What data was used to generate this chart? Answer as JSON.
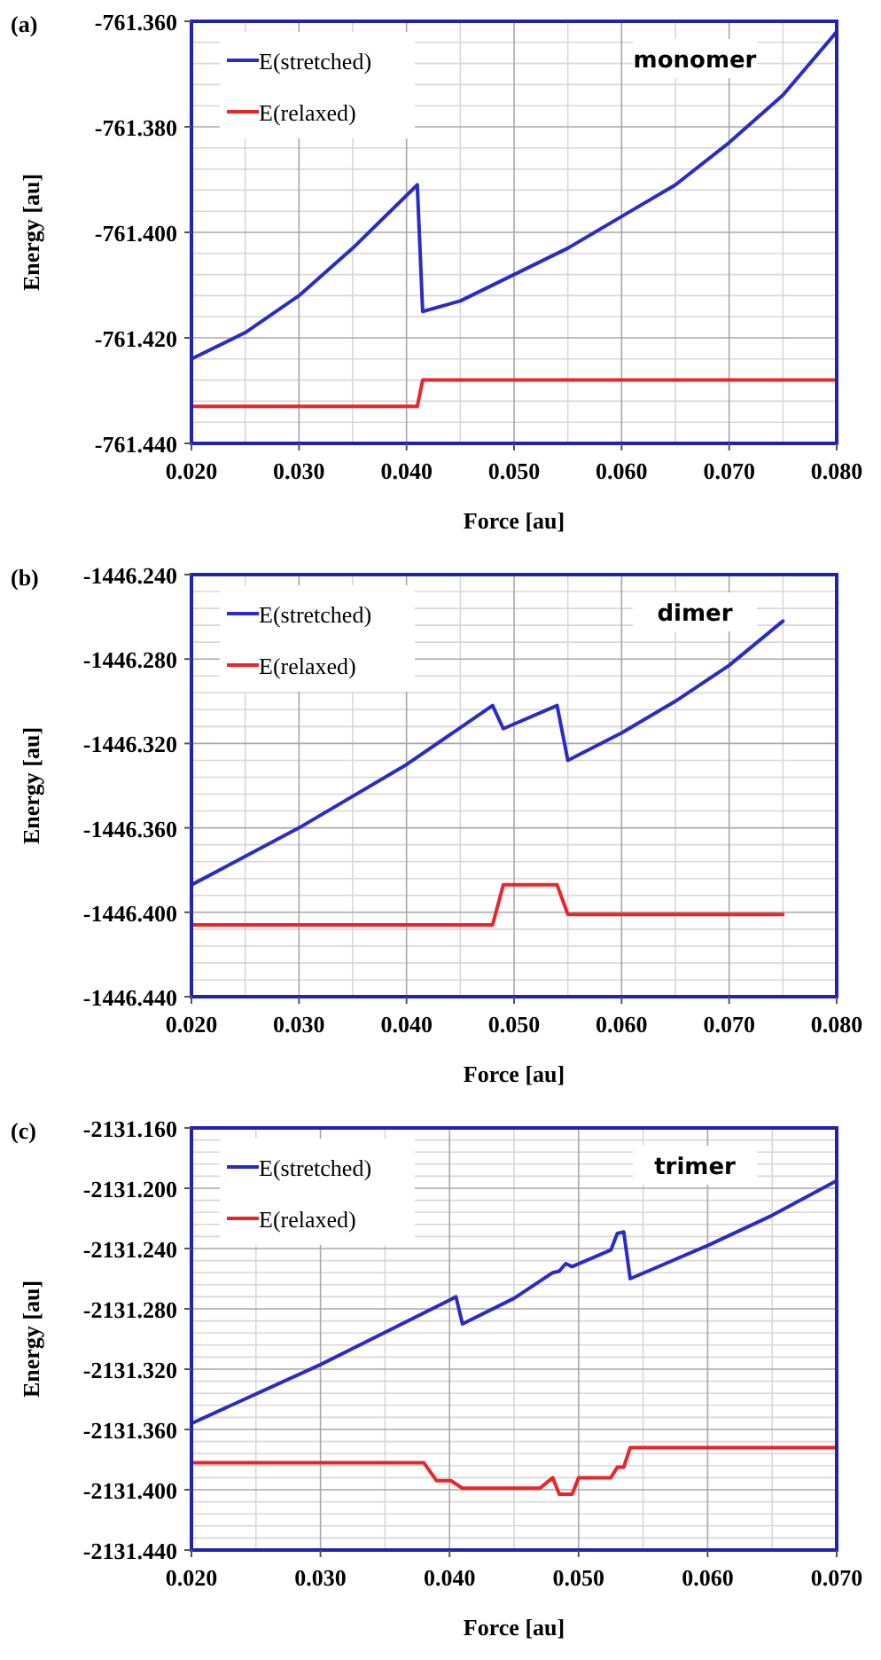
{
  "chart_data": [
    {
      "type": "line",
      "title": "(a)",
      "xlabel": "Force [au]",
      "ylabel": "Energy [au]",
      "annotations": [
        "monomer"
      ],
      "xlim": [
        0.02,
        0.08
      ],
      "xticks": [
        {
          "value": 0.02,
          "label": "0.020"
        },
        {
          "value": 0.03,
          "label": "0.030"
        },
        {
          "value": 0.04,
          "label": "0.040"
        },
        {
          "value": 0.05,
          "label": "0.050"
        },
        {
          "value": 0.06,
          "label": "0.060"
        },
        {
          "value": 0.07,
          "label": "0.070"
        },
        {
          "value": 0.08,
          "label": "0.080"
        }
      ],
      "ylim": [
        -761.44,
        -761.36
      ],
      "yticks": [
        {
          "value": -761.44,
          "label": "-761.440"
        },
        {
          "value": -761.42,
          "label": "-761.420"
        },
        {
          "value": -761.4,
          "label": "-761.400"
        },
        {
          "value": -761.38,
          "label": "-761.380"
        },
        {
          "value": -761.36,
          "label": "-761.360"
        }
      ],
      "grid": true,
      "legend": "top left",
      "marker": "none",
      "series": [
        {
          "name": "E(stretched)",
          "color": "#2b2bc8",
          "x": [
            0.02,
            0.025,
            0.03,
            0.035,
            0.041,
            0.0415,
            0.045,
            0.05,
            0.055,
            0.06,
            0.065,
            0.07,
            0.075,
            0.08
          ],
          "values": [
            -761.424,
            -761.419,
            -761.412,
            -761.403,
            -761.391,
            -761.415,
            -761.413,
            -761.408,
            -761.403,
            -761.397,
            -761.391,
            -761.383,
            -761.374,
            -761.362
          ]
        },
        {
          "name": "E(relaxed)",
          "color": "#e8262a",
          "x": [
            0.02,
            0.041,
            0.0415,
            0.08
          ],
          "values": [
            -761.433,
            -761.433,
            -761.428,
            -761.428
          ]
        }
      ]
    },
    {
      "type": "line",
      "title": "(b)",
      "xlabel": "Force [au]",
      "ylabel": "Energy [au]",
      "annotations": [
        "dimer"
      ],
      "xlim": [
        0.02,
        0.08
      ],
      "xticks": [
        {
          "value": 0.02,
          "label": "0.020"
        },
        {
          "value": 0.03,
          "label": "0.030"
        },
        {
          "value": 0.04,
          "label": "0.040"
        },
        {
          "value": 0.05,
          "label": "0.050"
        },
        {
          "value": 0.06,
          "label": "0.060"
        },
        {
          "value": 0.07,
          "label": "0.070"
        },
        {
          "value": 0.08,
          "label": "0.080"
        }
      ],
      "ylim": [
        -1446.44,
        -1446.24
      ],
      "yticks": [
        {
          "value": -1446.44,
          "label": "-1446.440"
        },
        {
          "value": -1446.4,
          "label": "-1446.400"
        },
        {
          "value": -1446.36,
          "label": "-1446.360"
        },
        {
          "value": -1446.32,
          "label": "-1446.320"
        },
        {
          "value": -1446.28,
          "label": "-1446.280"
        },
        {
          "value": -1446.24,
          "label": "-1446.240"
        }
      ],
      "grid": true,
      "legend": "top left",
      "marker": "none",
      "series": [
        {
          "name": "E(stretched)",
          "color": "#2b2bc8",
          "x": [
            0.02,
            0.03,
            0.04,
            0.048,
            0.049,
            0.054,
            0.055,
            0.06,
            0.065,
            0.07,
            0.075
          ],
          "values": [
            -1446.387,
            -1446.36,
            -1446.33,
            -1446.302,
            -1446.313,
            -1446.302,
            -1446.328,
            -1446.315,
            -1446.3,
            -1446.283,
            -1446.262
          ]
        },
        {
          "name": "E(relaxed)",
          "color": "#e8262a",
          "x": [
            0.02,
            0.048,
            0.049,
            0.054,
            0.055,
            0.075
          ],
          "values": [
            -1446.406,
            -1446.406,
            -1446.387,
            -1446.387,
            -1446.401,
            -1446.401
          ]
        }
      ]
    },
    {
      "type": "line",
      "title": "(c)",
      "xlabel": "Force [au]",
      "ylabel": "Energy [au]",
      "annotations": [
        "trimer"
      ],
      "xlim": [
        0.02,
        0.07
      ],
      "xticks": [
        {
          "value": 0.02,
          "label": "0.020"
        },
        {
          "value": 0.03,
          "label": "0.030"
        },
        {
          "value": 0.04,
          "label": "0.040"
        },
        {
          "value": 0.05,
          "label": "0.050"
        },
        {
          "value": 0.06,
          "label": "0.060"
        },
        {
          "value": 0.07,
          "label": "0.070"
        }
      ],
      "ylim": [
        -2131.44,
        -2131.16
      ],
      "yticks": [
        {
          "value": -2131.44,
          "label": "-2131.440"
        },
        {
          "value": -2131.4,
          "label": "-2131.400"
        },
        {
          "value": -2131.36,
          "label": "-2131.360"
        },
        {
          "value": -2131.32,
          "label": "-2131.320"
        },
        {
          "value": -2131.28,
          "label": "-2131.280"
        },
        {
          "value": -2131.24,
          "label": "-2131.240"
        },
        {
          "value": -2131.2,
          "label": "-2131.200"
        },
        {
          "value": -2131.16,
          "label": "-2131.160"
        }
      ],
      "grid": true,
      "legend": "top left",
      "marker": "none",
      "series": [
        {
          "name": "E(stretched)",
          "color": "#2b2bc8",
          "x": [
            0.02,
            0.03,
            0.0405,
            0.041,
            0.045,
            0.048,
            0.0485,
            0.049,
            0.0495,
            0.0525,
            0.053,
            0.0535,
            0.054,
            0.06,
            0.065,
            0.07
          ],
          "values": [
            -2131.356,
            -2131.317,
            -2131.272,
            -2131.29,
            -2131.273,
            -2131.256,
            -2131.255,
            -2131.25,
            -2131.252,
            -2131.241,
            -2131.23,
            -2131.229,
            -2131.26,
            -2131.238,
            -2131.218,
            -2131.195
          ]
        },
        {
          "name": "E(relaxed)",
          "color": "#e8262a",
          "x": [
            0.02,
            0.038,
            0.039,
            0.0401,
            0.041,
            0.047,
            0.048,
            0.0485,
            0.0495,
            0.05,
            0.0525,
            0.053,
            0.0535,
            0.054,
            0.07
          ],
          "values": [
            -2131.382,
            -2131.382,
            -2131.394,
            -2131.394,
            -2131.399,
            -2131.399,
            -2131.392,
            -2131.403,
            -2131.403,
            -2131.392,
            -2131.392,
            -2131.385,
            -2131.385,
            -2131.372,
            -2131.372
          ]
        }
      ]
    }
  ]
}
